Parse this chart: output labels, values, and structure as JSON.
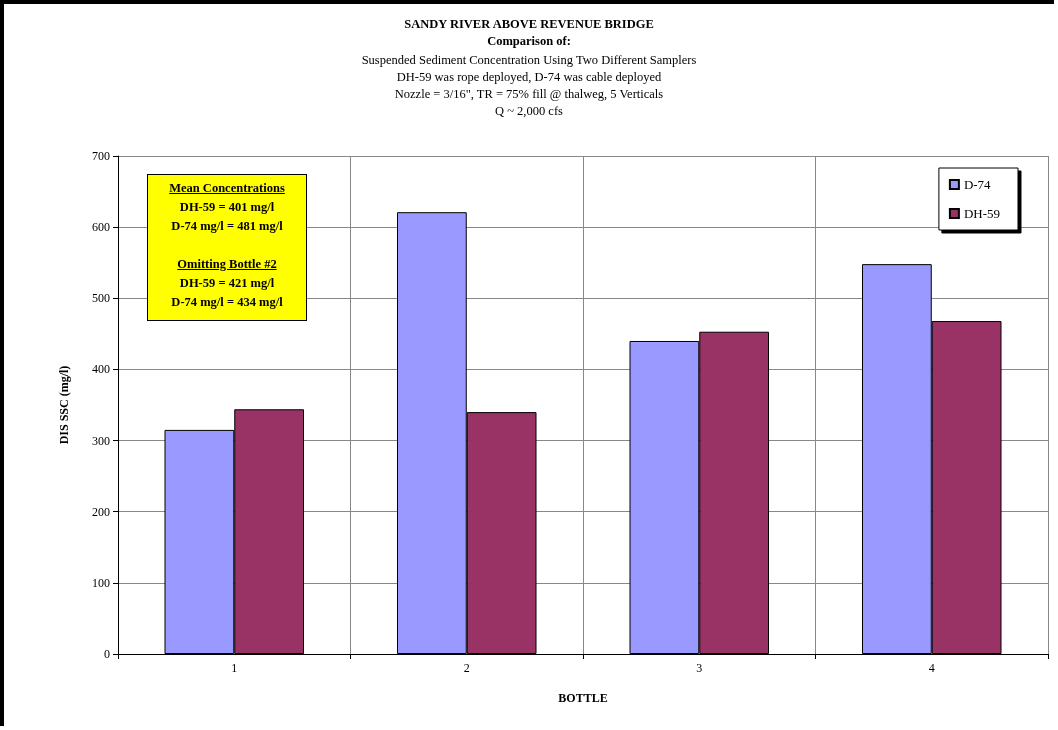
{
  "chart_data": {
    "type": "bar",
    "title": "SANDY RIVER ABOVE REVENUE BRIDGE\nComparison of:",
    "subtitle": "Suspended Sediment Concentration Using Two Different Samplers\nDH-59 was rope deployed, D-74 was cable deployed\nNozzle = 3/16\", TR = 75% fill @ thalweg, 5 Verticals\nQ ~ 2,000 cfs",
    "xlabel": "BOTTLE",
    "ylabel": "DIS SSC (mg/l)",
    "categories": [
      "1",
      "2",
      "3",
      "4"
    ],
    "series": [
      {
        "name": "D-74",
        "color": "#9999ff",
        "values": [
          315,
          621,
          440,
          548
        ]
      },
      {
        "name": "DH-59",
        "color": "#993366",
        "values": [
          344,
          340,
          453,
          468
        ]
      }
    ],
    "ylim": [
      0,
      700
    ],
    "yticks": [
      0,
      100,
      200,
      300,
      400,
      500,
      600,
      700
    ],
    "grid": true,
    "legend": "top right",
    "annotations": [
      "Mean Concentrations",
      "DH-59 = 401 mg/l",
      "D-74 mg/l = 481 mg/l",
      "Omitting Bottle #2",
      "DH-59 = 421 mg/l",
      "D-74 mg/l = 434  mg/l"
    ]
  }
}
